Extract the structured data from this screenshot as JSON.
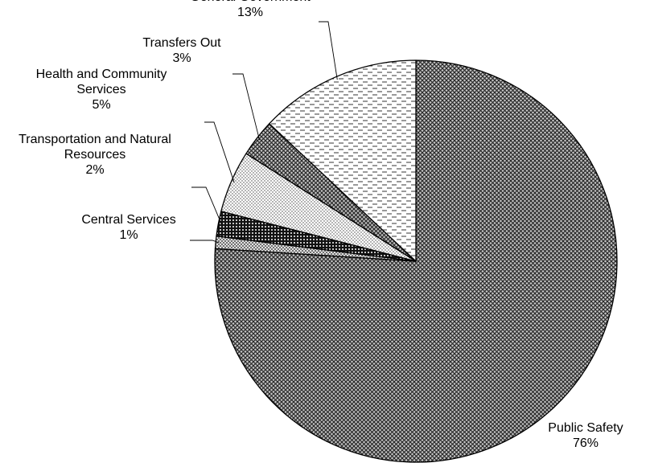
{
  "chart_data": {
    "type": "pie",
    "categories": [
      "Public Safety",
      "Central Services",
      "Transportation and Natural Resources",
      "Health and Community Services",
      "Transfers Out",
      "General Government"
    ],
    "label_lines": [
      [
        "Public Safety"
      ],
      [
        "Central Services"
      ],
      [
        "Transportation and Natural",
        "Resources"
      ],
      [
        "Health and Community",
        "Services"
      ],
      [
        "Transfers Out"
      ],
      [
        "General Government"
      ]
    ],
    "values": [
      76,
      1,
      2,
      5,
      3,
      13
    ],
    "percent_labels": [
      "76%",
      "1%",
      "2%",
      "5%",
      "3%",
      "13%"
    ],
    "start_angle_deg": 0,
    "direction": "clockwise",
    "fill_patterns": [
      "dense-crosshatch",
      "fine-cross",
      "dark-dots",
      "light-dots",
      "dense-crosshatch",
      "dashes"
    ],
    "title": "",
    "legend": "none"
  }
}
